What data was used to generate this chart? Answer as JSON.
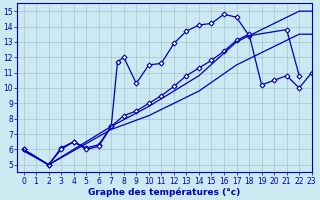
{
  "title": "Graphe des températures (°c)",
  "bg_color": "#cce8f0",
  "line_color": "#0000bb",
  "xlim": [
    -0.5,
    23
  ],
  "ylim": [
    4.5,
    15.5
  ],
  "xticks": [
    0,
    1,
    2,
    3,
    4,
    5,
    6,
    7,
    8,
    9,
    10,
    11,
    12,
    13,
    14,
    15,
    16,
    17,
    18,
    19,
    20,
    21,
    22,
    23
  ],
  "yticks": [
    5,
    6,
    7,
    8,
    9,
    10,
    11,
    12,
    13,
    14,
    15
  ],
  "series": [
    {
      "x": [
        0,
        2,
        3,
        4,
        5,
        6,
        7,
        7.5,
        8,
        9,
        10,
        11,
        12,
        13,
        14,
        15,
        16,
        17,
        18,
        21,
        22
      ],
      "y": [
        6,
        5,
        6.1,
        6.5,
        6.1,
        6.3,
        7.5,
        11.7,
        12.0,
        10.3,
        11.5,
        11.6,
        12.9,
        13.7,
        14.1,
        14.2,
        14.8,
        14.6,
        13.4,
        13.8,
        10.8
      ],
      "marker": "D",
      "markersize": 2.5,
      "lw": 0.9
    },
    {
      "x": [
        0,
        2,
        3,
        4,
        5,
        6,
        7,
        8,
        9,
        10,
        11,
        12,
        13,
        14,
        15,
        16,
        17,
        18,
        19,
        20,
        21,
        22,
        23
      ],
      "y": [
        6,
        5,
        6.0,
        6.5,
        6.0,
        6.2,
        7.5,
        8.2,
        8.5,
        9.0,
        9.5,
        10.1,
        10.8,
        11.3,
        11.8,
        12.4,
        13.1,
        13.5,
        10.2,
        10.5,
        10.8,
        10.0,
        11.0
      ],
      "marker": "D",
      "markersize": 2.5,
      "lw": 0.9
    },
    {
      "x": [
        0,
        2,
        7,
        10,
        14,
        17,
        22,
        23
      ],
      "y": [
        5.9,
        5.0,
        7.3,
        8.2,
        9.8,
        11.5,
        13.5,
        13.5
      ],
      "marker": null,
      "markersize": 0,
      "lw": 0.9
    },
    {
      "x": [
        0,
        2,
        7,
        10,
        14,
        17,
        22,
        23
      ],
      "y": [
        6.0,
        5.0,
        7.5,
        8.8,
        10.8,
        13.0,
        15.0,
        15.0
      ],
      "marker": null,
      "markersize": 0,
      "lw": 0.9
    }
  ]
}
